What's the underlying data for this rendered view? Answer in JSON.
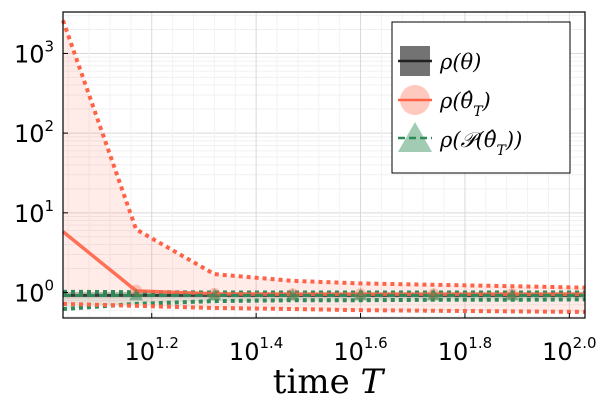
{
  "chart_data": {
    "type": "line",
    "title": "",
    "xlabel": "time T",
    "ylabel": "",
    "xscale": "log10",
    "yscale": "log10",
    "x_exponent_range": [
      1.03,
      2.03
    ],
    "y_exponent_range": [
      -0.32,
      3.52
    ],
    "grid": true,
    "legend_position": "top-right",
    "x_ticks": [
      {
        "base": "10",
        "exp": "1.2",
        "value_exp": 1.2
      },
      {
        "base": "10",
        "exp": "1.4",
        "value_exp": 1.4
      },
      {
        "base": "10",
        "exp": "1.6",
        "value_exp": 1.6
      },
      {
        "base": "10",
        "exp": "1.8",
        "value_exp": 1.8
      },
      {
        "base": "10",
        "exp": "2.0",
        "value_exp": 2.0
      }
    ],
    "y_ticks": [
      {
        "base": "10",
        "exp": "0",
        "value_exp": 0
      },
      {
        "base": "10",
        "exp": "1",
        "value_exp": 1
      },
      {
        "base": "10",
        "exp": "2",
        "value_exp": 2
      },
      {
        "base": "10",
        "exp": "3",
        "value_exp": 3
      }
    ],
    "series": [
      {
        "name": "ρ(θ)",
        "color": "#000000",
        "line_style": "solid",
        "marker": "square",
        "x_exp": [
          1.03,
          2.03
        ],
        "y": [
          0.92,
          0.92
        ],
        "band_lower": [
          0.84,
          0.84
        ],
        "band_upper": [
          1.0,
          1.0
        ]
      },
      {
        "name": "ρ(θ̂_T)",
        "color": "#ff6347",
        "line_style": "solid",
        "marker": "circle",
        "x_exp": [
          1.03,
          1.17,
          1.32,
          1.47,
          1.6,
          1.74,
          1.89,
          2.03
        ],
        "y": [
          5.8,
          1.05,
          0.96,
          0.95,
          0.95,
          0.95,
          0.95,
          0.95
        ],
        "band_lower": [
          0.72,
          0.68,
          0.64,
          0.62,
          0.6,
          0.59,
          0.58,
          0.57
        ],
        "band_upper": [
          2600,
          6.2,
          1.7,
          1.4,
          1.3,
          1.25,
          1.2,
          1.15
        ]
      },
      {
        "name": "ρ(𝒫(θ̂_T))",
        "color": "#2e8b57",
        "line_style": "dashed",
        "marker": "triangle",
        "x_exp": [
          1.03,
          1.17,
          1.32,
          1.47,
          1.6,
          1.74,
          1.89,
          2.03
        ],
        "y": [
          0.92,
          0.92,
          0.92,
          0.92,
          0.92,
          0.92,
          0.92,
          0.92
        ],
        "band_lower": [
          0.62,
          0.72,
          0.78,
          0.8,
          0.8,
          0.81,
          0.81,
          0.82
        ],
        "band_upper": [
          1.02,
          1.01,
          1.0,
          1.0,
          1.0,
          1.0,
          1.0,
          1.0
        ]
      }
    ],
    "markers_at_x_exp": [
      1.17,
      1.32,
      1.47,
      1.6,
      1.74,
      1.89
    ]
  },
  "legend": {
    "entries": [
      {
        "label": "ρ(θ)"
      },
      {
        "label": "ρ(θ̂T)"
      },
      {
        "label": "ρ(𝒫(θ̂T))"
      }
    ]
  }
}
